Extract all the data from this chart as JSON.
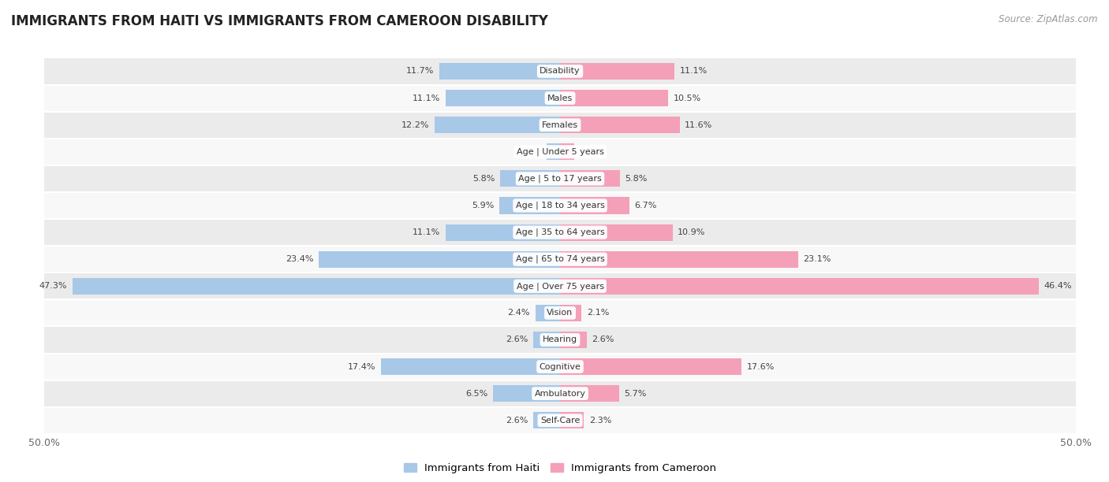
{
  "title": "IMMIGRANTS FROM HAITI VS IMMIGRANTS FROM CAMEROON DISABILITY",
  "source": "Source: ZipAtlas.com",
  "categories": [
    "Disability",
    "Males",
    "Females",
    "Age | Under 5 years",
    "Age | 5 to 17 years",
    "Age | 18 to 34 years",
    "Age | 35 to 64 years",
    "Age | 65 to 74 years",
    "Age | Over 75 years",
    "Vision",
    "Hearing",
    "Cognitive",
    "Ambulatory",
    "Self-Care"
  ],
  "haiti_values": [
    11.7,
    11.1,
    12.2,
    1.3,
    5.8,
    5.9,
    11.1,
    23.4,
    47.3,
    2.4,
    2.6,
    17.4,
    6.5,
    2.6
  ],
  "cameroon_values": [
    11.1,
    10.5,
    11.6,
    1.4,
    5.8,
    6.7,
    10.9,
    23.1,
    46.4,
    2.1,
    2.6,
    17.6,
    5.7,
    2.3
  ],
  "haiti_color": "#a8c8e8",
  "cameroon_color": "#f4a0b8",
  "background_row_light": "#ebebeb",
  "background_row_white": "#f8f8f8",
  "title_fontsize": 12,
  "axis_max": 50.0,
  "legend_label_haiti": "Immigrants from Haiti",
  "legend_label_cameroon": "Immigrants from Cameroon"
}
